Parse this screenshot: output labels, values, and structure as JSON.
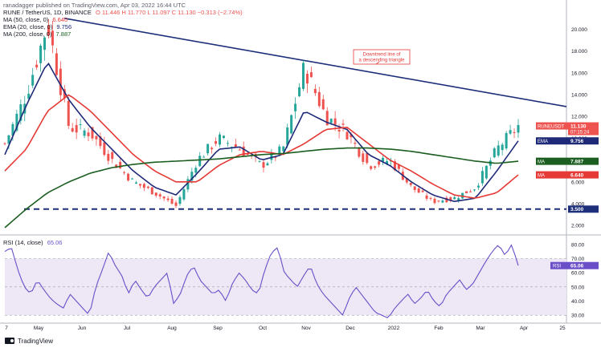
{
  "header": {
    "published_by": "ranadagger published on TradingView.com, Apr 03, 2022 16:44 UTC",
    "symbol": "RUNE / TetherUS, 1D, BINANCE",
    "ohlc": "O 11.446  H 11.770  L 11.097  C 11.130  −0.313 (−2.74%)",
    "ma50_label": "MA (50, close, 0)",
    "ma50_value": "6.640",
    "ema20_label": "EMA (20, close, 0)",
    "ema20_value": "9.756",
    "ma200_label": "MA (200, close, 0)",
    "ma200_value": "7.887",
    "rsi_label": "RSI (14, close)",
    "rsi_value": "65.06"
  },
  "footer": {
    "brand": "TradingView"
  },
  "annotation": "Downtrend line of a descending triangle",
  "colors": {
    "candle_up": "#26a69a",
    "candle_down": "#ef5350",
    "ema20": "#1e2a78",
    "ma50": "#e53935",
    "ma200": "#1b5e20",
    "trendline": "#1e2f7a",
    "support": "#1e2f7a",
    "rsi": "#6a4fc9",
    "rsi_band": "#ede7f6",
    "annotation_border": "#e53935"
  },
  "price_badges": [
    {
      "title": "RUNEUSDT",
      "value": "11.130",
      "sub": "07:15:24",
      "color": "#ef5350",
      "price": 11.13
    },
    {
      "title": "EMA",
      "value": "9.756",
      "color": "#1e2a78",
      "price": 9.756
    },
    {
      "title": "MA",
      "value": "7.887",
      "color": "#1b5e20",
      "price": 7.887
    },
    {
      "title": "MA",
      "value": "6.640",
      "color": "#e53935",
      "price": 6.64
    },
    {
      "title": "",
      "value": "3.500",
      "color": "#1e2f7a",
      "price": 3.5
    }
  ],
  "chart_data": [
    {
      "type": "candlestick",
      "title": "RUNE / TetherUS, 1D, BINANCE",
      "x_tick_labels": [
        "7",
        "May",
        "Jun",
        "Jul",
        "Aug",
        "Sep",
        "Oct",
        "Nov",
        "Dec",
        "2022",
        "Feb",
        "Mar",
        "Apr",
        "25"
      ],
      "y_tick_labels": [
        "2.000",
        "4.000",
        "6.000",
        "8.000",
        "10.000",
        "12.000",
        "14.000",
        "16.000",
        "18.000",
        "20.000"
      ],
      "y_ticks": [
        2,
        4,
        6,
        8,
        10,
        12,
        14,
        16,
        18,
        20
      ],
      "ylim": [
        1.5,
        21.5
      ],
      "grid": false,
      "support_level": 3.5,
      "trendline": {
        "from": {
          "x": "mid-May 2021",
          "y": 21.0
        },
        "to": {
          "x": "mid-Apr 2022",
          "y": 12.9
        }
      },
      "series": [
        {
          "name": "RUNEUSDT",
          "role": "close",
          "months": [
            "Apr",
            "May",
            "May",
            "May",
            "Jun",
            "Jun",
            "Jul",
            "Jul",
            "Aug",
            "Aug",
            "Sep",
            "Sep",
            "Oct",
            "Oct",
            "Nov",
            "Nov",
            "Dec",
            "Dec",
            "Jan",
            "Jan",
            "Feb",
            "Feb",
            "Mar",
            "Mar",
            "Apr"
          ],
          "values": [
            9.5,
            14,
            20.5,
            11,
            10.5,
            8,
            6,
            5,
            3.8,
            8,
            10,
            9,
            7.5,
            9,
            16.5,
            12,
            10.5,
            7.5,
            8,
            5.5,
            4.2,
            4.5,
            5.5,
            9,
            11.13
          ]
        },
        {
          "name": "EMA 20",
          "values": [
            8.5,
            13,
            17,
            13.5,
            11,
            9,
            7,
            5.5,
            4.8,
            6.8,
            9,
            9.2,
            8,
            8.5,
            12.5,
            11.5,
            10.8,
            8.5,
            7.5,
            6,
            4.8,
            4.2,
            4.5,
            7,
            9.756
          ]
        },
        {
          "name": "MA 50",
          "values": [
            7,
            9,
            12.5,
            14,
            12.5,
            10.5,
            8.5,
            7,
            6,
            6,
            7.5,
            8.5,
            8.8,
            8.5,
            9.5,
            10.8,
            11,
            9.5,
            8,
            7,
            5.8,
            4.8,
            4.5,
            5,
            6.64
          ]
        },
        {
          "name": "MA 200",
          "values": [
            1.8,
            3.5,
            5,
            6,
            6.8,
            7.3,
            7.6,
            7.8,
            7.9,
            8,
            8.1,
            8.3,
            8.5,
            8.6,
            8.8,
            9,
            9.1,
            9.1,
            9,
            8.8,
            8.5,
            8.2,
            7.9,
            7.7,
            7.887
          ]
        }
      ]
    },
    {
      "type": "line",
      "title": "RSI (14, close)",
      "y_tick_labels": [
        "30.00",
        "40.00",
        "50.00",
        "60.00",
        "70.00",
        "80.00"
      ],
      "y_ticks": [
        30,
        40,
        50,
        60,
        70,
        80
      ],
      "ylim": [
        25,
        85
      ],
      "band": [
        30,
        70
      ],
      "series": [
        {
          "name": "RSI",
          "values": [
            75,
            78,
            62,
            50,
            45,
            55,
            48,
            42,
            38,
            35,
            45,
            40,
            35,
            30,
            50,
            62,
            75,
            65,
            58,
            45,
            55,
            48,
            42,
            50,
            55,
            60,
            38,
            45,
            58,
            65,
            55,
            50,
            45,
            48,
            40,
            52,
            60,
            55,
            48,
            45,
            62,
            74,
            78,
            60,
            55,
            50,
            58,
            65,
            52,
            45,
            40,
            35,
            30,
            42,
            50,
            44,
            38,
            32,
            30,
            28,
            35,
            40,
            45,
            38,
            42,
            48,
            40,
            36,
            45,
            50,
            55,
            48,
            52,
            60,
            68,
            75,
            80,
            72,
            80,
            65.06
          ]
        }
      ]
    }
  ]
}
